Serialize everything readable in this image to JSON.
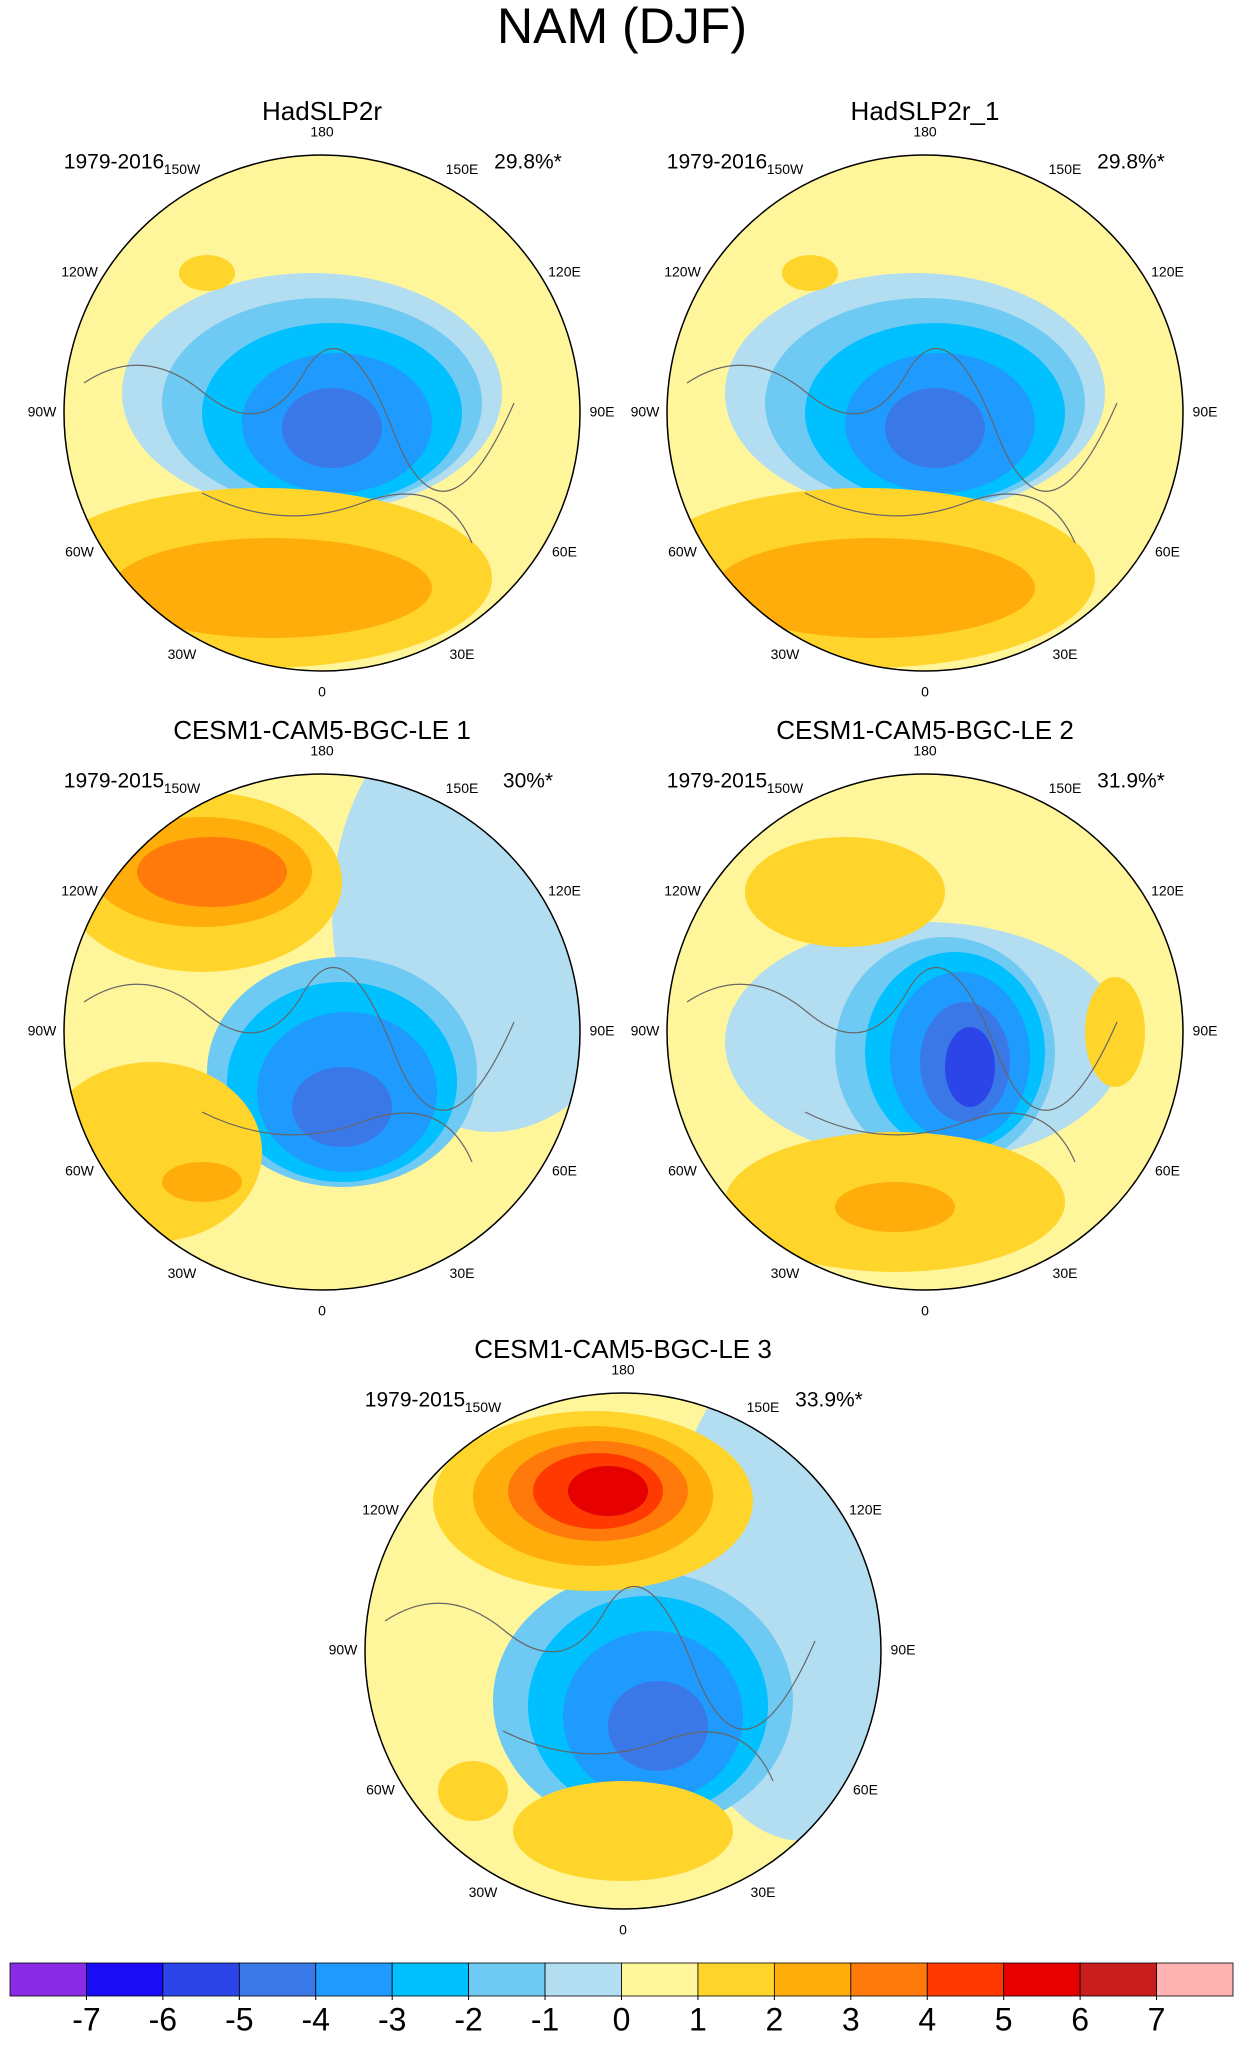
{
  "title": "NAM (DJF)",
  "panels": [
    {
      "title": "HadSLP2r",
      "period": "1979-2016",
      "variance": "29.8%*"
    },
    {
      "title": "HadSLP2r_1",
      "period": "1979-2016",
      "variance": "29.8%*"
    },
    {
      "title": "CESM1-CAM5-BGC-LE 1",
      "period": "1979-2015",
      "variance": "30%*"
    },
    {
      "title": "CESM1-CAM5-BGC-LE 2",
      "period": "1979-2015",
      "variance": "31.9%*"
    },
    {
      "title": "CESM1-CAM5-BGC-LE 3",
      "period": "1979-2015",
      "variance": "33.9%*"
    }
  ],
  "longitude_labels": [
    "180",
    "150E",
    "120E",
    "90E",
    "60E",
    "30E",
    "0",
    "30W",
    "60W",
    "90W",
    "120W",
    "150W"
  ],
  "colorbar": {
    "colors": [
      "#8a2be6",
      "#1a0cf5",
      "#2b45e8",
      "#3a78e8",
      "#1f9aff",
      "#00c0ff",
      "#6fcaf3",
      "#b3def2",
      "#fff59a",
      "#ffd42b",
      "#ffad0a",
      "#ff7a0a",
      "#ff3a00",
      "#e60000",
      "#c81e1e",
      "#ffb3b3"
    ],
    "ticks": [
      -7,
      -6,
      -5,
      -4,
      -3,
      -2,
      -1,
      0,
      1,
      2,
      3,
      4,
      5,
      6,
      7
    ]
  }
}
